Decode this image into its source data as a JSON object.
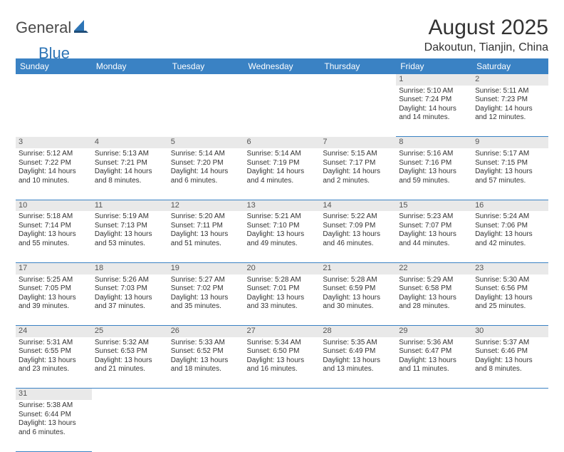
{
  "logo": {
    "part1": "General",
    "part2": "Blue"
  },
  "title": "August 2025",
  "location": "Dakoutun, Tianjin, China",
  "colors": {
    "header_bg": "#3a82c4",
    "header_text": "#ffffff",
    "daynum_bg": "#e9e9e9",
    "row_border": "#3a82c4",
    "logo_gray": "#4a4a4a",
    "logo_blue": "#2e75b6"
  },
  "weekdays": [
    "Sunday",
    "Monday",
    "Tuesday",
    "Wednesday",
    "Thursday",
    "Friday",
    "Saturday"
  ],
  "weeks": [
    [
      null,
      null,
      null,
      null,
      null,
      {
        "day": "1",
        "sunrise": "Sunrise: 5:10 AM",
        "sunset": "Sunset: 7:24 PM",
        "daylight": "Daylight: 14 hours and 14 minutes."
      },
      {
        "day": "2",
        "sunrise": "Sunrise: 5:11 AM",
        "sunset": "Sunset: 7:23 PM",
        "daylight": "Daylight: 14 hours and 12 minutes."
      }
    ],
    [
      {
        "day": "3",
        "sunrise": "Sunrise: 5:12 AM",
        "sunset": "Sunset: 7:22 PM",
        "daylight": "Daylight: 14 hours and 10 minutes."
      },
      {
        "day": "4",
        "sunrise": "Sunrise: 5:13 AM",
        "sunset": "Sunset: 7:21 PM",
        "daylight": "Daylight: 14 hours and 8 minutes."
      },
      {
        "day": "5",
        "sunrise": "Sunrise: 5:14 AM",
        "sunset": "Sunset: 7:20 PM",
        "daylight": "Daylight: 14 hours and 6 minutes."
      },
      {
        "day": "6",
        "sunrise": "Sunrise: 5:14 AM",
        "sunset": "Sunset: 7:19 PM",
        "daylight": "Daylight: 14 hours and 4 minutes."
      },
      {
        "day": "7",
        "sunrise": "Sunrise: 5:15 AM",
        "sunset": "Sunset: 7:17 PM",
        "daylight": "Daylight: 14 hours and 2 minutes."
      },
      {
        "day": "8",
        "sunrise": "Sunrise: 5:16 AM",
        "sunset": "Sunset: 7:16 PM",
        "daylight": "Daylight: 13 hours and 59 minutes."
      },
      {
        "day": "9",
        "sunrise": "Sunrise: 5:17 AM",
        "sunset": "Sunset: 7:15 PM",
        "daylight": "Daylight: 13 hours and 57 minutes."
      }
    ],
    [
      {
        "day": "10",
        "sunrise": "Sunrise: 5:18 AM",
        "sunset": "Sunset: 7:14 PM",
        "daylight": "Daylight: 13 hours and 55 minutes."
      },
      {
        "day": "11",
        "sunrise": "Sunrise: 5:19 AM",
        "sunset": "Sunset: 7:13 PM",
        "daylight": "Daylight: 13 hours and 53 minutes."
      },
      {
        "day": "12",
        "sunrise": "Sunrise: 5:20 AM",
        "sunset": "Sunset: 7:11 PM",
        "daylight": "Daylight: 13 hours and 51 minutes."
      },
      {
        "day": "13",
        "sunrise": "Sunrise: 5:21 AM",
        "sunset": "Sunset: 7:10 PM",
        "daylight": "Daylight: 13 hours and 49 minutes."
      },
      {
        "day": "14",
        "sunrise": "Sunrise: 5:22 AM",
        "sunset": "Sunset: 7:09 PM",
        "daylight": "Daylight: 13 hours and 46 minutes."
      },
      {
        "day": "15",
        "sunrise": "Sunrise: 5:23 AM",
        "sunset": "Sunset: 7:07 PM",
        "daylight": "Daylight: 13 hours and 44 minutes."
      },
      {
        "day": "16",
        "sunrise": "Sunrise: 5:24 AM",
        "sunset": "Sunset: 7:06 PM",
        "daylight": "Daylight: 13 hours and 42 minutes."
      }
    ],
    [
      {
        "day": "17",
        "sunrise": "Sunrise: 5:25 AM",
        "sunset": "Sunset: 7:05 PM",
        "daylight": "Daylight: 13 hours and 39 minutes."
      },
      {
        "day": "18",
        "sunrise": "Sunrise: 5:26 AM",
        "sunset": "Sunset: 7:03 PM",
        "daylight": "Daylight: 13 hours and 37 minutes."
      },
      {
        "day": "19",
        "sunrise": "Sunrise: 5:27 AM",
        "sunset": "Sunset: 7:02 PM",
        "daylight": "Daylight: 13 hours and 35 minutes."
      },
      {
        "day": "20",
        "sunrise": "Sunrise: 5:28 AM",
        "sunset": "Sunset: 7:01 PM",
        "daylight": "Daylight: 13 hours and 33 minutes."
      },
      {
        "day": "21",
        "sunrise": "Sunrise: 5:28 AM",
        "sunset": "Sunset: 6:59 PM",
        "daylight": "Daylight: 13 hours and 30 minutes."
      },
      {
        "day": "22",
        "sunrise": "Sunrise: 5:29 AM",
        "sunset": "Sunset: 6:58 PM",
        "daylight": "Daylight: 13 hours and 28 minutes."
      },
      {
        "day": "23",
        "sunrise": "Sunrise: 5:30 AM",
        "sunset": "Sunset: 6:56 PM",
        "daylight": "Daylight: 13 hours and 25 minutes."
      }
    ],
    [
      {
        "day": "24",
        "sunrise": "Sunrise: 5:31 AM",
        "sunset": "Sunset: 6:55 PM",
        "daylight": "Daylight: 13 hours and 23 minutes."
      },
      {
        "day": "25",
        "sunrise": "Sunrise: 5:32 AM",
        "sunset": "Sunset: 6:53 PM",
        "daylight": "Daylight: 13 hours and 21 minutes."
      },
      {
        "day": "26",
        "sunrise": "Sunrise: 5:33 AM",
        "sunset": "Sunset: 6:52 PM",
        "daylight": "Daylight: 13 hours and 18 minutes."
      },
      {
        "day": "27",
        "sunrise": "Sunrise: 5:34 AM",
        "sunset": "Sunset: 6:50 PM",
        "daylight": "Daylight: 13 hours and 16 minutes."
      },
      {
        "day": "28",
        "sunrise": "Sunrise: 5:35 AM",
        "sunset": "Sunset: 6:49 PM",
        "daylight": "Daylight: 13 hours and 13 minutes."
      },
      {
        "day": "29",
        "sunrise": "Sunrise: 5:36 AM",
        "sunset": "Sunset: 6:47 PM",
        "daylight": "Daylight: 13 hours and 11 minutes."
      },
      {
        "day": "30",
        "sunrise": "Sunrise: 5:37 AM",
        "sunset": "Sunset: 6:46 PM",
        "daylight": "Daylight: 13 hours and 8 minutes."
      }
    ],
    [
      {
        "day": "31",
        "sunrise": "Sunrise: 5:38 AM",
        "sunset": "Sunset: 6:44 PM",
        "daylight": "Daylight: 13 hours and 6 minutes."
      },
      null,
      null,
      null,
      null,
      null,
      null
    ]
  ]
}
